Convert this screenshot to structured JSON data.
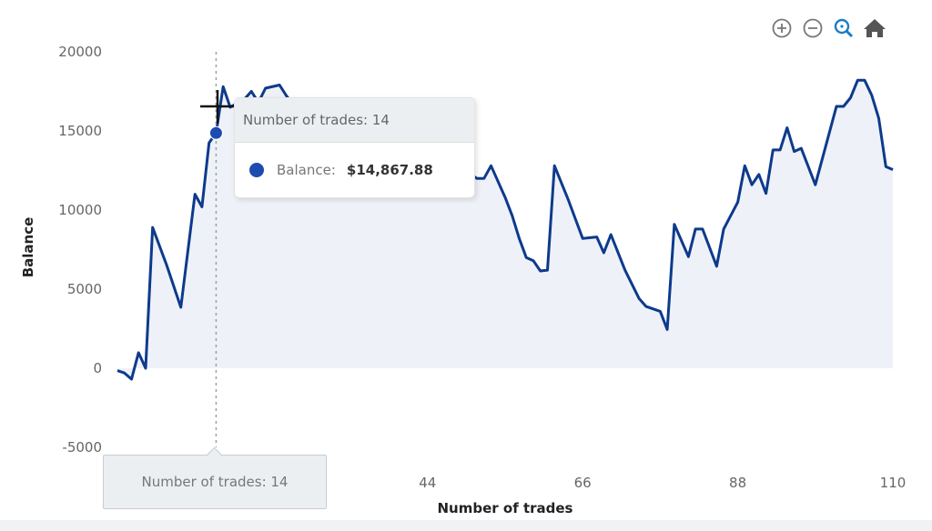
{
  "toolbar": {
    "icons": [
      "zoom-in-icon",
      "zoom-out-icon",
      "selection-zoom-icon",
      "reset-home-icon"
    ],
    "active_color": "#1a7dc4"
  },
  "tooltip": {
    "title": "Number of trades: 14",
    "series_label": "Balance:",
    "value": "$14,867.88"
  },
  "xaxis_tooltip": "Number of trades: 14",
  "colors": {
    "line": "#0d3a8c",
    "fill": "#eef2f8",
    "marker": "#1e4bb0"
  },
  "chart_data": {
    "type": "area",
    "title": "",
    "xlabel": "Number of trades",
    "ylabel": "Balance",
    "xlim": [
      0,
      110
    ],
    "ylim": [
      -5000,
      20000
    ],
    "x_ticks": [
      "44",
      "66",
      "88",
      "110"
    ],
    "x_tick_values": [
      44,
      66,
      88,
      110
    ],
    "y_ticks": [
      "20000",
      "15000",
      "10000",
      "5000",
      "0",
      "-5000"
    ],
    "y_tick_values": [
      20000,
      15000,
      10000,
      5000,
      0,
      -5000
    ],
    "hover_x": 14,
    "series": [
      {
        "name": "Balance",
        "points": [
          [
            0,
            -150
          ],
          [
            1,
            -300
          ],
          [
            2,
            -690
          ],
          [
            3,
            980
          ],
          [
            4,
            0
          ],
          [
            5,
            8900
          ],
          [
            7,
            6500
          ],
          [
            9,
            3850
          ],
          [
            11,
            11000
          ],
          [
            12,
            10200
          ],
          [
            13,
            14250
          ],
          [
            14,
            14868
          ],
          [
            15,
            17800
          ],
          [
            16,
            16500
          ],
          [
            18,
            17000
          ],
          [
            19,
            17500
          ],
          [
            20,
            16800
          ],
          [
            21,
            17700
          ],
          [
            23,
            17900
          ],
          [
            24,
            17200
          ],
          [
            26,
            16000
          ],
          [
            28,
            15400
          ],
          [
            30,
            15000
          ],
          [
            32,
            14200
          ],
          [
            34,
            14000
          ],
          [
            36,
            14800
          ],
          [
            38,
            15000
          ],
          [
            40,
            14100
          ],
          [
            42,
            13500
          ],
          [
            44,
            13200
          ],
          [
            46,
            12500
          ],
          [
            48,
            12400
          ],
          [
            50,
            12300
          ],
          [
            51,
            12000
          ],
          [
            52,
            12000
          ],
          [
            53,
            12800
          ],
          [
            55,
            10800
          ],
          [
            56,
            9650
          ],
          [
            57,
            8200
          ],
          [
            58,
            7000
          ],
          [
            59,
            6800
          ],
          [
            60,
            6150
          ],
          [
            61,
            6200
          ],
          [
            62,
            12800
          ],
          [
            64,
            10600
          ],
          [
            66,
            8200
          ],
          [
            68,
            8300
          ],
          [
            69,
            7300
          ],
          [
            70,
            8450
          ],
          [
            72,
            6200
          ],
          [
            74,
            4400
          ],
          [
            75,
            3900
          ],
          [
            77,
            3600
          ],
          [
            78,
            2450
          ],
          [
            79,
            9100
          ],
          [
            81,
            7050
          ],
          [
            82,
            8800
          ],
          [
            83,
            8800
          ],
          [
            85,
            6450
          ],
          [
            86,
            8800
          ],
          [
            88,
            10500
          ],
          [
            89,
            12800
          ],
          [
            90,
            11600
          ],
          [
            91,
            12250
          ],
          [
            92,
            11050
          ],
          [
            93,
            13800
          ],
          [
            94,
            13800
          ],
          [
            95,
            15200
          ],
          [
            96,
            13700
          ],
          [
            97,
            13900
          ],
          [
            99,
            11600
          ],
          [
            102,
            16550
          ],
          [
            103,
            16550
          ],
          [
            104,
            17100
          ],
          [
            105,
            18200
          ],
          [
            106,
            18200
          ],
          [
            107,
            17250
          ],
          [
            108,
            15800
          ],
          [
            109,
            12750
          ],
          [
            110,
            12550
          ]
        ]
      }
    ]
  }
}
